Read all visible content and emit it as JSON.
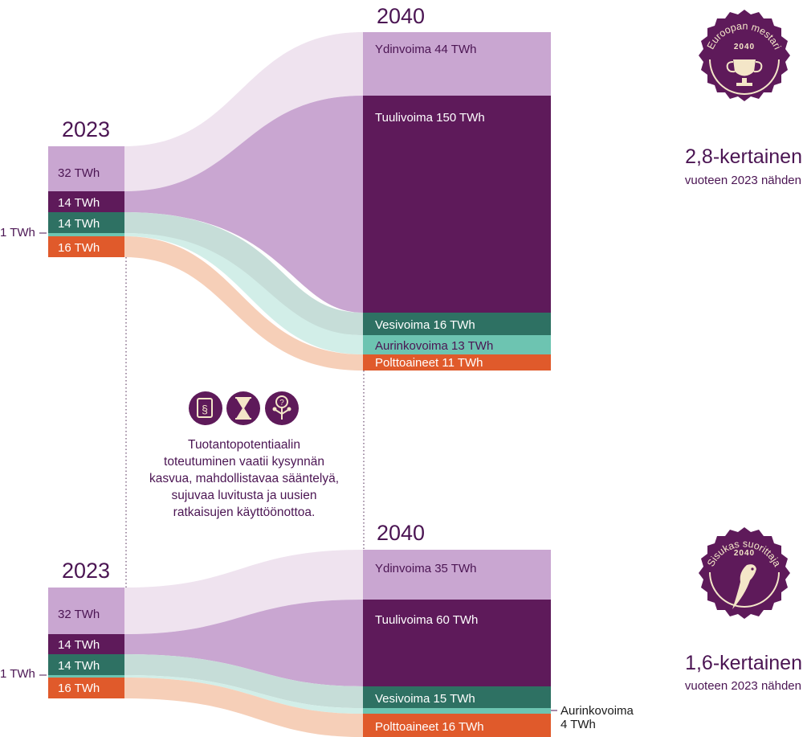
{
  "colors": {
    "nuclear": "#c9a6d1",
    "nuclear_flow": "#efe3ef",
    "wind": "#5e1a5a",
    "wind_flow": "#c9a6d1",
    "hydro": "#2e7163",
    "hydro_flow": "#c6ddd8",
    "solar": "#6dc4b1",
    "solar_flow": "#d2eee8",
    "fuels": "#e05a2b",
    "fuels_flow": "#f6cfb8",
    "text_purple": "#4b1553",
    "badge_dark": "#5e1a5a",
    "badge_light": "#f4e6c8"
  },
  "top": {
    "year_2023": "2023",
    "year_2040": "2040",
    "left_labels": [
      "32 TWh",
      "14 TWh",
      "14 TWh",
      "16 TWh"
    ],
    "side_label": "1 TWh",
    "right_labels": [
      "Ydinvoima 44 TWh",
      "Tuulivoima 150 TWh",
      "Vesivoima 16 TWh",
      "Aurinkovoima 13 TWh",
      "Polttoaineet 11 TWh"
    ],
    "badge_title": "Euroopan mestari",
    "badge_year": "2040",
    "multiplier": "2,8-kertainen",
    "multiplier_sub": "vuoteen 2023 nähden"
  },
  "bottom": {
    "year_2023": "2023",
    "year_2040": "2040",
    "left_labels": [
      "32 TWh",
      "14 TWh",
      "14 TWh",
      "16 TWh"
    ],
    "side_label": "1 TWh",
    "right_labels": [
      "Ydinvoima 35 TWh",
      "Tuulivoima 60 TWh",
      "Vesivoima 15 TWh",
      "Polttoaineet 16 TWh"
    ],
    "solar_callout": [
      "Aurinkovoima",
      "4 TWh"
    ],
    "badge_title": "Sisukas suorittaja",
    "badge_year": "2040",
    "multiplier": "1,6-kertainen",
    "multiplier_sub": "vuoteen 2023 nähden"
  },
  "middle": {
    "icons": [
      "law-book-icon",
      "hourglass-icon",
      "idea-tree-icon"
    ],
    "icon_glyphs": [
      "§",
      "",
      "?"
    ],
    "text_lines": [
      "Tuotantopotentiaalin",
      "toteutuminen vaatii kysynnän",
      "kasvua, mahdollistavaa sääntelyä,",
      "sujuvaa luvitusta ja uusien",
      "ratkaisujen käyttöönottoa."
    ]
  }
}
